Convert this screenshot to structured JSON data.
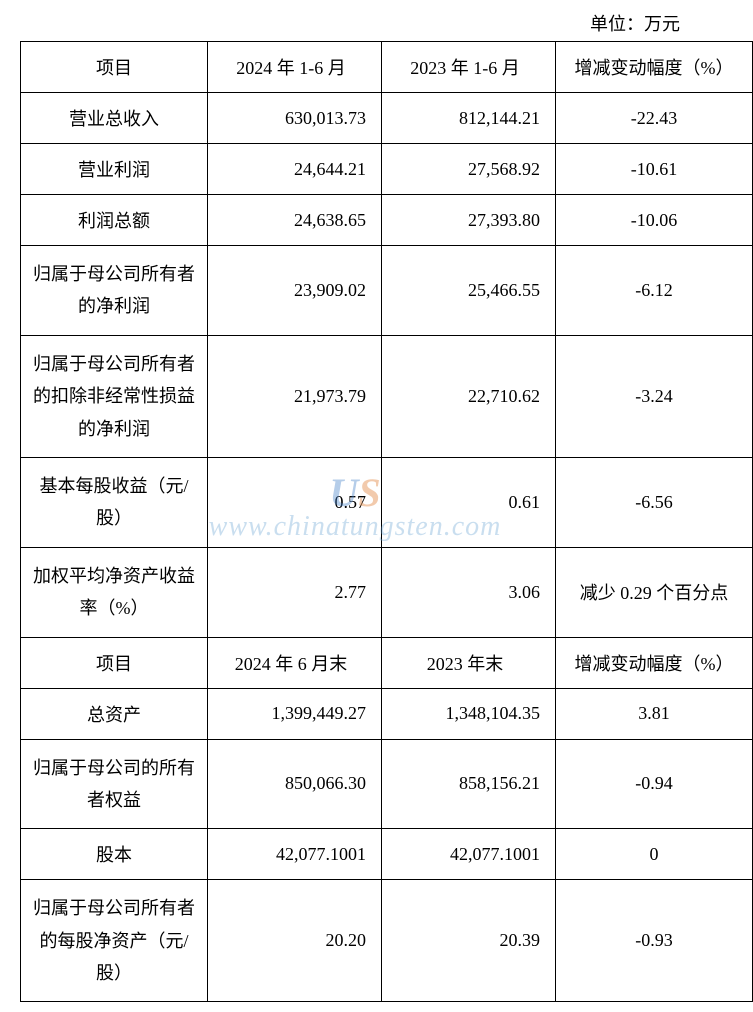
{
  "unit_label": "单位：万元",
  "headers1": {
    "item": "项目",
    "col1": "2024 年 1-6 月",
    "col2": "2023 年 1-6 月",
    "change": "增减变动幅度（%）"
  },
  "rows1": [
    {
      "item": "营业总收入",
      "c1": "630,013.73",
      "c2": "812,144.21",
      "chg": "-22.43"
    },
    {
      "item": "营业利润",
      "c1": "24,644.21",
      "c2": "27,568.92",
      "chg": "-10.61"
    },
    {
      "item": "利润总额",
      "c1": "24,638.65",
      "c2": "27,393.80",
      "chg": "-10.06"
    },
    {
      "item": "归属于母公司所有者的净利润",
      "c1": "23,909.02",
      "c2": "25,466.55",
      "chg": "-6.12"
    },
    {
      "item": "归属于母公司所有者的扣除非经常性损益的净利润",
      "c1": "21,973.79",
      "c2": "22,710.62",
      "chg": "-3.24"
    },
    {
      "item": "基本每股收益（元/股）",
      "c1": "0.57",
      "c2": "0.61",
      "chg": "-6.56"
    },
    {
      "item": "加权平均净资产收益率（%）",
      "c1": "2.77",
      "c2": "3.06",
      "chg": "减少 0.29 个百分点"
    }
  ],
  "headers2": {
    "item": "项目",
    "col1": "2024 年 6 月末",
    "col2": "2023 年末",
    "change": "增减变动幅度（%）"
  },
  "rows2": [
    {
      "item": "总资产",
      "c1": "1,399,449.27",
      "c2": "1,348,104.35",
      "chg": "3.81"
    },
    {
      "item": "归属于母公司的所有者权益",
      "c1": "850,066.30",
      "c2": "858,156.21",
      "chg": "-0.94"
    },
    {
      "item": "股本",
      "c1": "42,077.1001",
      "c2": "42,077.1001",
      "chg": "0"
    },
    {
      "item": "归属于母公司所有者的每股净资产（元/股）",
      "c1": "20.20",
      "c2": "20.39",
      "chg": "-0.93"
    }
  ],
  "watermark": {
    "logo_text": "US",
    "url_text": "www.chinatungsten.com"
  },
  "style": {
    "font_family": "SimSun",
    "font_size_pt": 14,
    "border_color": "#000000",
    "background_color": "#ffffff"
  }
}
